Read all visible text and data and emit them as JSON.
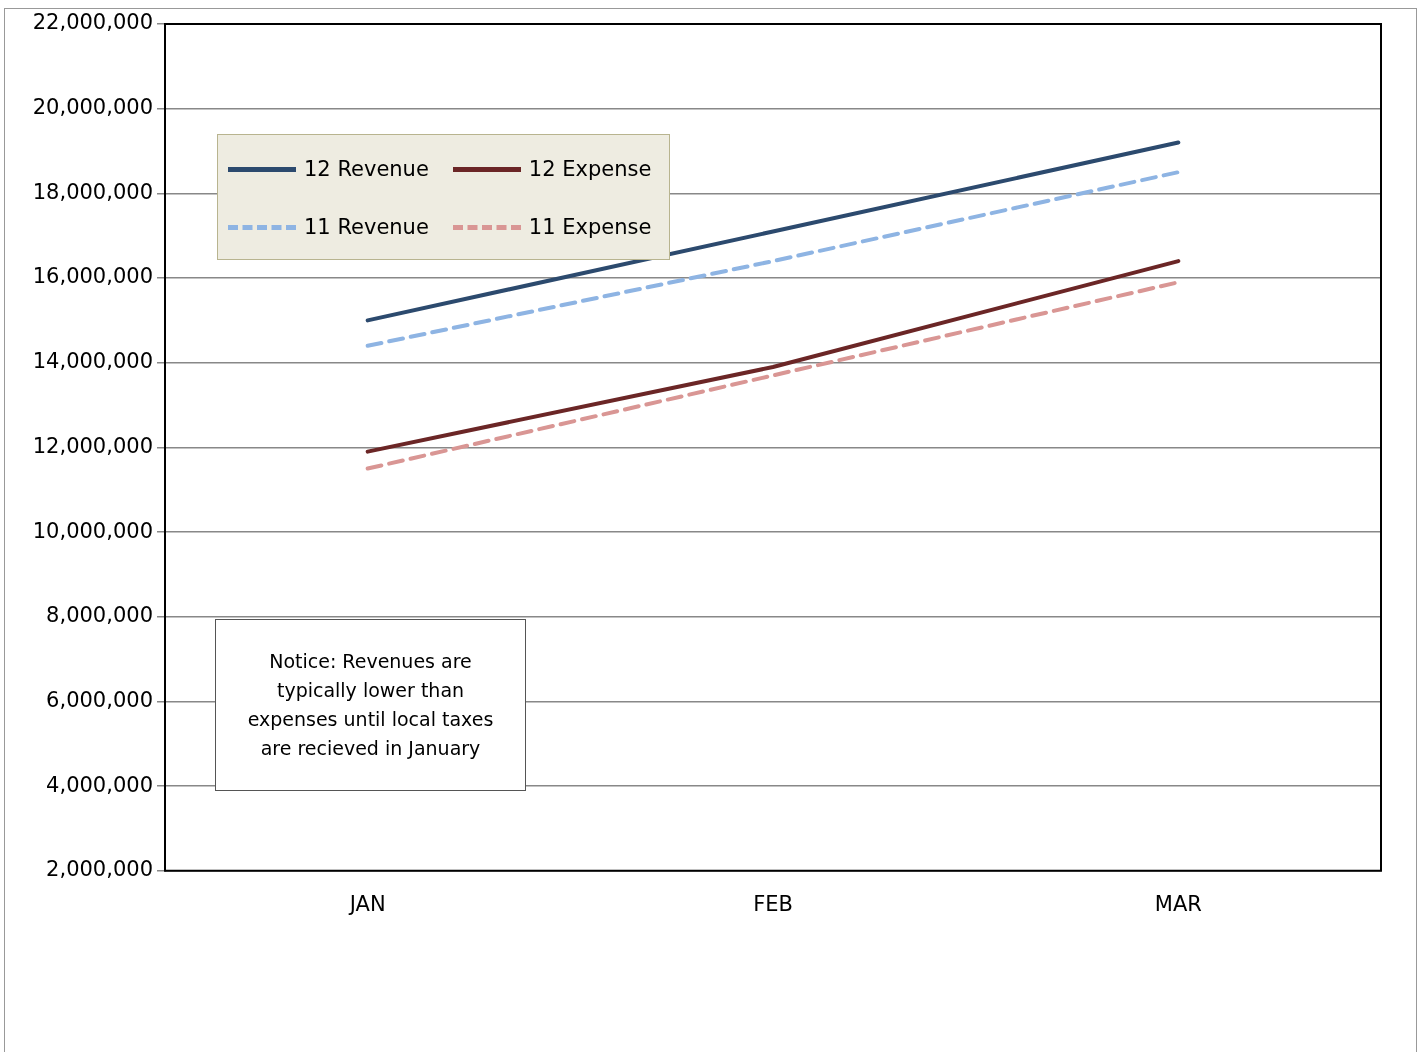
{
  "chart_data": {
    "type": "line",
    "categories": [
      "JAN",
      "FEB",
      "MAR"
    ],
    "series": [
      {
        "name": "12 Revenue",
        "color": "#2c4a6e",
        "values": [
          15000000,
          17100000,
          19200000
        ],
        "line_style": "solid"
      },
      {
        "name": "12 Expense",
        "color": "#6b2626",
        "values": [
          11900000,
          13900000,
          16400000
        ],
        "line_style": "solid"
      },
      {
        "name": "11 Revenue",
        "color": "#8eb4e3",
        "values": [
          14400000,
          16400000,
          18500000
        ],
        "line_style": "dashed"
      },
      {
        "name": "11 Expense",
        "color": "#d99694",
        "values": [
          11500000,
          13700000,
          15900000
        ],
        "line_style": "dashed"
      }
    ],
    "ylim": [
      2000000,
      22000000
    ],
    "yticks": [
      {
        "value": 2000000,
        "label": "2,000,000"
      },
      {
        "value": 4000000,
        "label": "4,000,000"
      },
      {
        "value": 6000000,
        "label": "6,000,000"
      },
      {
        "value": 8000000,
        "label": "8,000,000"
      },
      {
        "value": 10000000,
        "label": "10,000,000"
      },
      {
        "value": 12000000,
        "label": "12,000,000"
      },
      {
        "value": 14000000,
        "label": "14,000,000"
      },
      {
        "value": 16000000,
        "label": "16,000,000"
      },
      {
        "value": 18000000,
        "label": "18,000,000"
      },
      {
        "value": 20000000,
        "label": "20,000,000"
      },
      {
        "value": 22000000,
        "label": "22,000,000"
      }
    ],
    "grid": "y",
    "legend": "top left",
    "marker": "none",
    "annotations": [
      "Notice: Revenues are typically lower than expenses until local taxes are recieved in January"
    ]
  }
}
